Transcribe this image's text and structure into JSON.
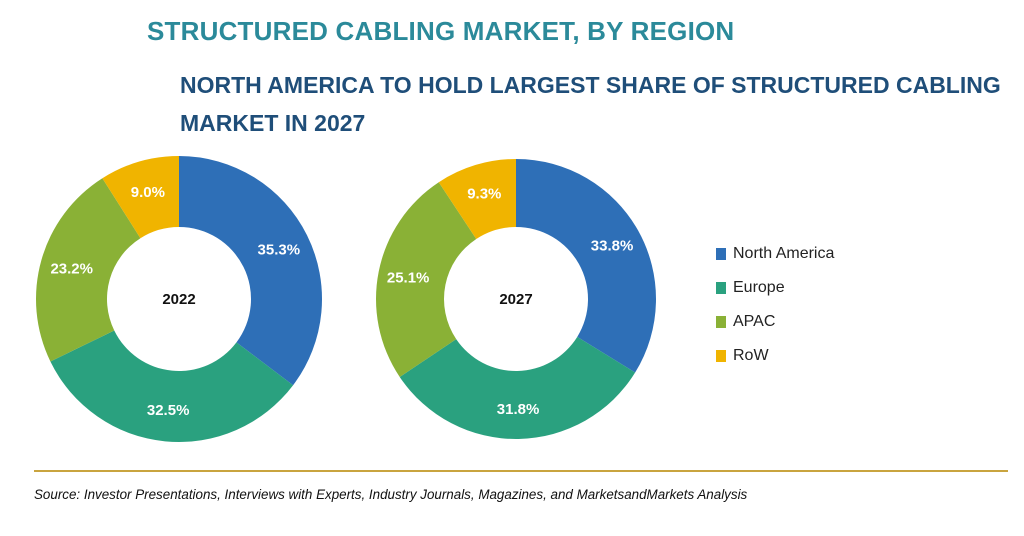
{
  "header": {
    "title": "STRUCTURED CABLING MARKET, BY REGION",
    "subtitle": "NORTH AMERICA TO HOLD LARGEST SHARE OF STRUCTURED CABLING MARKET IN 2027"
  },
  "legend": {
    "items": [
      {
        "label": "North America",
        "color": "#2e6fb7"
      },
      {
        "label": "Europe",
        "color": "#2aa17f"
      },
      {
        "label": "APAC",
        "color": "#8ab136"
      },
      {
        "label": "RoW",
        "color": "#f0b400"
      }
    ]
  },
  "footer": {
    "source": "Source: Investor Presentations, Interviews with Experts, Industry Journals, Magazines, and MarketsandMarkets Analysis"
  },
  "chart_data": [
    {
      "type": "pie",
      "center_label": "2022",
      "categories": [
        "North America",
        "Europe",
        "APAC",
        "RoW"
      ],
      "values": [
        35.3,
        32.5,
        23.2,
        9.0
      ],
      "labels": [
        "35.3%",
        "32.5%",
        "23.2%",
        "9.0%"
      ]
    },
    {
      "type": "pie",
      "center_label": "2027",
      "categories": [
        "North America",
        "Europe",
        "APAC",
        "RoW"
      ],
      "values": [
        33.8,
        31.8,
        25.1,
        9.3
      ],
      "labels": [
        "33.8%",
        "31.8%",
        "25.1%",
        "9.3%"
      ]
    }
  ]
}
